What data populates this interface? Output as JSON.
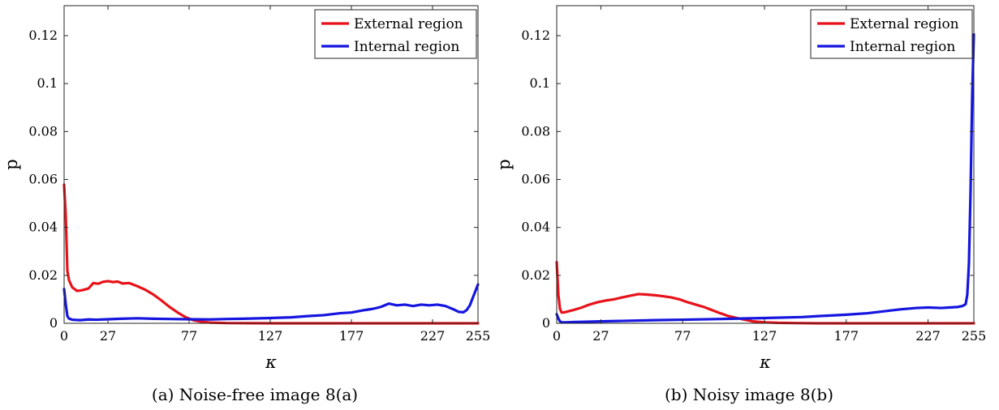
{
  "chart_data": [
    {
      "type": "line",
      "caption": "(a) Noise-free image 8(a)",
      "xlabel": "κ",
      "ylabel": "p",
      "xlim": [
        0,
        255
      ],
      "ylim": [
        0,
        0.1325
      ],
      "xticks": [
        0,
        27,
        77,
        127,
        177,
        227,
        255
      ],
      "yticks": [
        0,
        0.02,
        0.04,
        0.06,
        0.08,
        0.1,
        0.12
      ],
      "ytick_labels": [
        "0",
        "0.02",
        "0.04",
        "0.06",
        "0.08",
        "0.1",
        "0.12"
      ],
      "legend_position": "top-right",
      "series": [
        {
          "name": "External region",
          "color": "#e8121a",
          "x": [
            0,
            1,
            2,
            3,
            5,
            8,
            11,
            15,
            18,
            21,
            24,
            27,
            30,
            33,
            36,
            40,
            45,
            50,
            55,
            60,
            65,
            70,
            75,
            80,
            85,
            90,
            100,
            127,
            177,
            227,
            255
          ],
          "y": [
            0.0578,
            0.045,
            0.022,
            0.018,
            0.015,
            0.0135,
            0.0138,
            0.0145,
            0.0168,
            0.0165,
            0.0173,
            0.0176,
            0.0172,
            0.0174,
            0.0166,
            0.0168,
            0.0155,
            0.014,
            0.012,
            0.0095,
            0.0068,
            0.0045,
            0.0025,
            0.0012,
            0.0006,
            0.0003,
            0.0001,
            0.0,
            0.0,
            0.0,
            0.0
          ]
        },
        {
          "name": "Internal region",
          "color": "#1515e0",
          "x": [
            0,
            1,
            2,
            3,
            5,
            10,
            15,
            20,
            27,
            35,
            45,
            55,
            65,
            77,
            90,
            100,
            110,
            127,
            140,
            150,
            160,
            170,
            177,
            185,
            190,
            195,
            200,
            205,
            210,
            215,
            220,
            225,
            230,
            235,
            240,
            243,
            246,
            248,
            250,
            252,
            255
          ],
          "y": [
            0.0143,
            0.008,
            0.003,
            0.002,
            0.0015,
            0.0013,
            0.0016,
            0.0015,
            0.0017,
            0.0019,
            0.0021,
            0.0019,
            0.0018,
            0.0017,
            0.0016,
            0.0018,
            0.0019,
            0.0022,
            0.0025,
            0.003,
            0.0034,
            0.0042,
            0.0045,
            0.0055,
            0.006,
            0.0068,
            0.0082,
            0.0075,
            0.0078,
            0.0072,
            0.0078,
            0.0075,
            0.0078,
            0.0072,
            0.0058,
            0.0048,
            0.0046,
            0.0055,
            0.0075,
            0.011,
            0.0162
          ]
        }
      ]
    },
    {
      "type": "line",
      "caption": "(b) Noisy image 8(b)",
      "xlabel": "κ",
      "ylabel": "p",
      "xlim": [
        0,
        255
      ],
      "ylim": [
        0,
        0.1325
      ],
      "xticks": [
        0,
        27,
        77,
        127,
        177,
        227,
        255
      ],
      "yticks": [
        0,
        0.02,
        0.04,
        0.06,
        0.08,
        0.1,
        0.12
      ],
      "ytick_labels": [
        "0",
        "0.02",
        "0.04",
        "0.06",
        "0.08",
        "0.1",
        "0.12"
      ],
      "legend_position": "top-right",
      "series": [
        {
          "name": "External region",
          "color": "#e8121a",
          "x": [
            0,
            1,
            2,
            3,
            4,
            6,
            10,
            15,
            20,
            25,
            30,
            35,
            40,
            45,
            50,
            55,
            60,
            65,
            70,
            75,
            80,
            85,
            90,
            95,
            100,
            105,
            110,
            115,
            120,
            127,
            135,
            145,
            160,
            177,
            227,
            255
          ],
          "y": [
            0.0255,
            0.012,
            0.006,
            0.0045,
            0.0045,
            0.0048,
            0.0055,
            0.0065,
            0.0078,
            0.0088,
            0.0095,
            0.01,
            0.0108,
            0.0115,
            0.0122,
            0.012,
            0.0117,
            0.0113,
            0.0108,
            0.01,
            0.0088,
            0.0078,
            0.0068,
            0.0055,
            0.0042,
            0.003,
            0.0022,
            0.0015,
            0.0008,
            0.0004,
            0.0002,
            0.0001,
            0.0,
            0.0,
            0.0,
            0.0
          ]
        },
        {
          "name": "Internal region",
          "color": "#1515e0",
          "x": [
            0,
            1,
            2,
            3,
            5,
            10,
            20,
            27,
            40,
            60,
            77,
            100,
            127,
            150,
            160,
            177,
            190,
            200,
            210,
            220,
            227,
            235,
            240,
            245,
            248,
            250,
            251,
            252,
            253,
            254,
            255
          ],
          "y": [
            0.0038,
            0.002,
            0.0008,
            0.0004,
            0.0004,
            0.0005,
            0.0007,
            0.0008,
            0.001,
            0.0013,
            0.0015,
            0.0018,
            0.0022,
            0.0026,
            0.003,
            0.0036,
            0.0042,
            0.005,
            0.0058,
            0.0064,
            0.0066,
            0.0064,
            0.0066,
            0.0068,
            0.0072,
            0.008,
            0.012,
            0.025,
            0.055,
            0.095,
            0.1205
          ]
        }
      ]
    }
  ]
}
